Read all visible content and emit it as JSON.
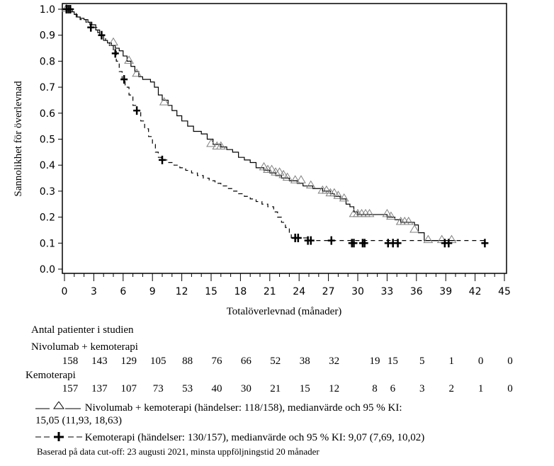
{
  "chart_data": {
    "type": "line",
    "title": "",
    "xlabel": "Totalöverlevnad (månader)",
    "ylabel": "Sannolikhet för överlevnad",
    "xlim": [
      0,
      45
    ],
    "ylim": [
      0,
      1
    ],
    "xticks": [
      "0",
      "3",
      "6",
      "9",
      "12",
      "15",
      "18",
      "21",
      "24",
      "27",
      "30",
      "33",
      "36",
      "39",
      "42",
      "45"
    ],
    "yticks": [
      "0.0",
      "0.1",
      "0.2",
      "0.3",
      "0.4",
      "0.5",
      "0.6",
      "0.7",
      "0.8",
      "0.9",
      "1.0"
    ],
    "grid": false,
    "series": [
      {
        "name": "Nivolumab + kemoterapi",
        "line_style": "solid",
        "marker": "triangle",
        "color": "#000000",
        "marker_color": "#808080",
        "steps": [
          [
            0,
            1.0
          ],
          [
            0.6,
            0.99
          ],
          [
            1.0,
            0.98
          ],
          [
            1.3,
            0.97
          ],
          [
            1.6,
            0.965
          ],
          [
            2.0,
            0.96
          ],
          [
            2.4,
            0.95
          ],
          [
            2.8,
            0.94
          ],
          [
            3.2,
            0.92
          ],
          [
            3.6,
            0.9
          ],
          [
            4.0,
            0.88
          ],
          [
            4.4,
            0.87
          ],
          [
            4.8,
            0.86
          ],
          [
            5.2,
            0.85
          ],
          [
            5.6,
            0.84
          ],
          [
            6.0,
            0.82
          ],
          [
            6.4,
            0.8
          ],
          [
            6.8,
            0.78
          ],
          [
            7.2,
            0.76
          ],
          [
            7.6,
            0.74
          ],
          [
            8.0,
            0.73
          ],
          [
            8.8,
            0.72
          ],
          [
            9.2,
            0.7
          ],
          [
            9.6,
            0.67
          ],
          [
            10.0,
            0.65
          ],
          [
            10.6,
            0.63
          ],
          [
            11.0,
            0.61
          ],
          [
            11.5,
            0.59
          ],
          [
            12.0,
            0.57
          ],
          [
            12.6,
            0.55
          ],
          [
            13.2,
            0.53
          ],
          [
            14.0,
            0.52
          ],
          [
            14.6,
            0.5
          ],
          [
            15.2,
            0.48
          ],
          [
            16.0,
            0.47
          ],
          [
            16.6,
            0.46
          ],
          [
            17.2,
            0.45
          ],
          [
            17.8,
            0.43
          ],
          [
            18.4,
            0.42
          ],
          [
            19.0,
            0.41
          ],
          [
            19.6,
            0.39
          ],
          [
            20.4,
            0.38
          ],
          [
            21.0,
            0.37
          ],
          [
            21.6,
            0.36
          ],
          [
            22.2,
            0.35
          ],
          [
            23.0,
            0.34
          ],
          [
            23.8,
            0.33
          ],
          [
            24.4,
            0.32
          ],
          [
            25.4,
            0.31
          ],
          [
            26.4,
            0.3
          ],
          [
            27.2,
            0.29
          ],
          [
            27.6,
            0.28
          ],
          [
            28.2,
            0.27
          ],
          [
            28.8,
            0.25
          ],
          [
            29.2,
            0.24
          ],
          [
            29.6,
            0.22
          ],
          [
            30.0,
            0.21
          ],
          [
            31.6,
            0.21
          ],
          [
            33.0,
            0.2
          ],
          [
            33.8,
            0.19
          ],
          [
            34.4,
            0.18
          ],
          [
            35.8,
            0.17
          ],
          [
            36.2,
            0.14
          ],
          [
            36.8,
            0.11
          ],
          [
            40.0,
            0.11
          ]
        ],
        "censored": [
          [
            0.2,
            1.0
          ],
          [
            5.0,
            0.87
          ],
          [
            6.6,
            0.8
          ],
          [
            7.4,
            0.75
          ],
          [
            10.2,
            0.64
          ],
          [
            15.0,
            0.48
          ],
          [
            15.6,
            0.47
          ],
          [
            16.0,
            0.47
          ],
          [
            20.4,
            0.39
          ],
          [
            20.8,
            0.38
          ],
          [
            21.2,
            0.38
          ],
          [
            21.6,
            0.37
          ],
          [
            22.0,
            0.37
          ],
          [
            22.4,
            0.36
          ],
          [
            22.8,
            0.35
          ],
          [
            23.6,
            0.34
          ],
          [
            24.2,
            0.34
          ],
          [
            25.2,
            0.32
          ],
          [
            26.4,
            0.3
          ],
          [
            26.8,
            0.3
          ],
          [
            27.2,
            0.29
          ],
          [
            27.6,
            0.29
          ],
          [
            28.0,
            0.28
          ],
          [
            28.6,
            0.27
          ],
          [
            29.6,
            0.21
          ],
          [
            30.0,
            0.21
          ],
          [
            30.4,
            0.21
          ],
          [
            30.8,
            0.21
          ],
          [
            31.2,
            0.21
          ],
          [
            33.0,
            0.21
          ],
          [
            33.4,
            0.2
          ],
          [
            34.4,
            0.18
          ],
          [
            34.8,
            0.18
          ],
          [
            35.2,
            0.18
          ],
          [
            35.8,
            0.15
          ],
          [
            37.2,
            0.11
          ],
          [
            38.6,
            0.11
          ],
          [
            39.6,
            0.11
          ]
        ],
        "at_risk": [
          158,
          143,
          129,
          105,
          88,
          76,
          66,
          52,
          38,
          32,
          19,
          15,
          5,
          1,
          0,
          0
        ]
      },
      {
        "name": "Kemoterapi",
        "line_style": "dashed",
        "marker": "plus",
        "color": "#000000",
        "marker_color": "#000000",
        "steps": [
          [
            0,
            1.0
          ],
          [
            0.8,
            0.99
          ],
          [
            1.2,
            0.97
          ],
          [
            1.6,
            0.96
          ],
          [
            2.2,
            0.95
          ],
          [
            2.6,
            0.94
          ],
          [
            3.0,
            0.93
          ],
          [
            3.4,
            0.91
          ],
          [
            3.8,
            0.9
          ],
          [
            4.2,
            0.88
          ],
          [
            4.6,
            0.86
          ],
          [
            5.0,
            0.84
          ],
          [
            5.3,
            0.8
          ],
          [
            5.6,
            0.76
          ],
          [
            5.9,
            0.73
          ],
          [
            6.2,
            0.7
          ],
          [
            6.6,
            0.67
          ],
          [
            7.0,
            0.63
          ],
          [
            7.4,
            0.61
          ],
          [
            7.8,
            0.57
          ],
          [
            8.2,
            0.54
          ],
          [
            8.6,
            0.51
          ],
          [
            9.0,
            0.48
          ],
          [
            9.3,
            0.45
          ],
          [
            9.6,
            0.43
          ],
          [
            9.9,
            0.42
          ],
          [
            10.6,
            0.41
          ],
          [
            11.2,
            0.4
          ],
          [
            11.8,
            0.39
          ],
          [
            12.4,
            0.38
          ],
          [
            13.0,
            0.37
          ],
          [
            13.6,
            0.36
          ],
          [
            14.2,
            0.35
          ],
          [
            14.8,
            0.34
          ],
          [
            15.4,
            0.33
          ],
          [
            16.0,
            0.32
          ],
          [
            16.6,
            0.31
          ],
          [
            17.2,
            0.3
          ],
          [
            17.8,
            0.29
          ],
          [
            18.4,
            0.28
          ],
          [
            19.0,
            0.27
          ],
          [
            19.6,
            0.26
          ],
          [
            20.2,
            0.25
          ],
          [
            20.8,
            0.24
          ],
          [
            21.4,
            0.22
          ],
          [
            21.8,
            0.2
          ],
          [
            22.2,
            0.18
          ],
          [
            22.6,
            0.16
          ],
          [
            23.0,
            0.14
          ],
          [
            23.2,
            0.12
          ],
          [
            25.0,
            0.11
          ],
          [
            43.0,
            0.1
          ]
        ],
        "censored": [
          [
            0.2,
            1.0
          ],
          [
            0.4,
            1.0
          ],
          [
            0.6,
            1.0
          ],
          [
            2.7,
            0.93
          ],
          [
            3.8,
            0.9
          ],
          [
            5.2,
            0.83
          ],
          [
            6.1,
            0.73
          ],
          [
            7.4,
            0.61
          ],
          [
            10.0,
            0.42
          ],
          [
            23.6,
            0.12
          ],
          [
            23.9,
            0.12
          ],
          [
            24.9,
            0.11
          ],
          [
            25.2,
            0.11
          ],
          [
            27.3,
            0.11
          ],
          [
            29.4,
            0.1
          ],
          [
            29.6,
            0.1
          ],
          [
            30.5,
            0.1
          ],
          [
            30.7,
            0.1
          ],
          [
            33.1,
            0.1
          ],
          [
            33.6,
            0.1
          ],
          [
            34.1,
            0.1
          ],
          [
            38.9,
            0.1
          ],
          [
            39.3,
            0.1
          ],
          [
            43.0,
            0.1
          ]
        ],
        "at_risk": [
          157,
          137,
          107,
          73,
          53,
          40,
          30,
          21,
          15,
          12,
          8,
          6,
          3,
          2,
          1,
          0
        ]
      }
    ],
    "at_risk_times": [
      0,
      3,
      6,
      9,
      12,
      15,
      18,
      21,
      24,
      27,
      30,
      33,
      36,
      39,
      42,
      45
    ],
    "at_risk_label": "Antal patienter i studien",
    "legend_placement": "bottom"
  },
  "legend": {
    "nivo_line1": "Nivolumab + kemoterapi (händelser: 118/158), medianvärde och 95 % KI:",
    "nivo_line2": "15,05 (11,93, 18,63)",
    "chemo_line": "Kemoterapi (händelser: 130/157), medianvärde och 95 % KI: 9,07 (7,69, 10,02)"
  },
  "footnote": "Baserad på data cut-off: 23 augusti 2021, minsta uppföljningstid 20 månader"
}
